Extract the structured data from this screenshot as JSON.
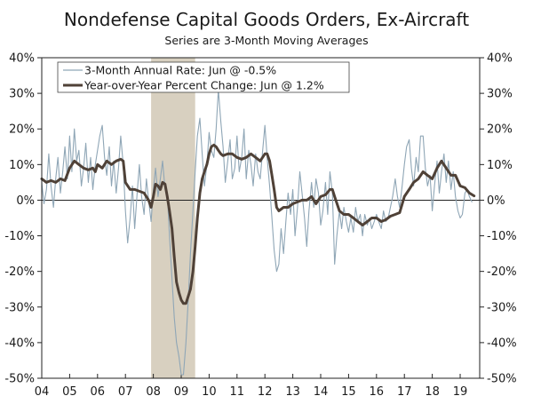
{
  "chart_data": {
    "type": "line",
    "title": "Nondefense Capital Goods Orders, Ex-Aircraft",
    "subtitle": "Series are 3-Month Moving Averages",
    "y_unit": "%",
    "ylim": [
      -50,
      40
    ],
    "y_ticks": [
      40,
      30,
      20,
      10,
      0,
      -10,
      -20,
      -30,
      -40,
      -50
    ],
    "y_tick_labels": [
      "40%",
      "30%",
      "20%",
      "10%",
      "0%",
      "-10%",
      "-20%",
      "-30%",
      "-40%",
      "-50%"
    ],
    "xlim": [
      2004,
      2019.7
    ],
    "x_ticks": [
      2004,
      2005,
      2006,
      2007,
      2008,
      2009,
      2010,
      2011,
      2012,
      2013,
      2014,
      2015,
      2016,
      2017,
      2018,
      2019
    ],
    "x_tick_labels": [
      "04",
      "05",
      "06",
      "07",
      "08",
      "09",
      "10",
      "11",
      "12",
      "13",
      "14",
      "15",
      "16",
      "17",
      "18",
      "19"
    ],
    "recession": {
      "start": 2007.92,
      "end": 2009.5
    },
    "legend_position": "top-left",
    "series": [
      {
        "name": "3-Month Annual Rate: Jun @ -0.5%",
        "color": "#8fa6b6",
        "style": "thin",
        "points": [
          [
            2004.0,
            5
          ],
          [
            2004.08,
            -1
          ],
          [
            2004.17,
            3
          ],
          [
            2004.25,
            13
          ],
          [
            2004.33,
            4
          ],
          [
            2004.42,
            -2
          ],
          [
            2004.5,
            6
          ],
          [
            2004.58,
            12
          ],
          [
            2004.67,
            2
          ],
          [
            2004.75,
            8
          ],
          [
            2004.83,
            15
          ],
          [
            2004.92,
            6
          ],
          [
            2005.0,
            18
          ],
          [
            2005.08,
            8
          ],
          [
            2005.17,
            20
          ],
          [
            2005.25,
            11
          ],
          [
            2005.33,
            14
          ],
          [
            2005.42,
            4
          ],
          [
            2005.5,
            9
          ],
          [
            2005.58,
            16
          ],
          [
            2005.67,
            5
          ],
          [
            2005.75,
            12
          ],
          [
            2005.83,
            3
          ],
          [
            2005.92,
            10
          ],
          [
            2006.0,
            14
          ],
          [
            2006.08,
            18
          ],
          [
            2006.17,
            21
          ],
          [
            2006.25,
            12
          ],
          [
            2006.33,
            7
          ],
          [
            2006.42,
            15
          ],
          [
            2006.5,
            4
          ],
          [
            2006.58,
            11
          ],
          [
            2006.67,
            2
          ],
          [
            2006.75,
            9
          ],
          [
            2006.83,
            18
          ],
          [
            2006.92,
            10
          ],
          [
            2007.0,
            -3
          ],
          [
            2007.08,
            -12
          ],
          [
            2007.17,
            -5
          ],
          [
            2007.25,
            4
          ],
          [
            2007.33,
            -8
          ],
          [
            2007.42,
            2
          ],
          [
            2007.5,
            10
          ],
          [
            2007.58,
            1
          ],
          [
            2007.67,
            -4
          ],
          [
            2007.75,
            6
          ],
          [
            2007.83,
            0
          ],
          [
            2007.92,
            -6
          ],
          [
            2008.0,
            3
          ],
          [
            2008.08,
            9
          ],
          [
            2008.17,
            1
          ],
          [
            2008.25,
            6
          ],
          [
            2008.33,
            11
          ],
          [
            2008.42,
            3
          ],
          [
            2008.5,
            2
          ],
          [
            2008.58,
            -10
          ],
          [
            2008.67,
            -22
          ],
          [
            2008.75,
            -33
          ],
          [
            2008.83,
            -40
          ],
          [
            2008.92,
            -44
          ],
          [
            2009.0,
            -49
          ],
          [
            2009.08,
            -49
          ],
          [
            2009.17,
            -40
          ],
          [
            2009.25,
            -28
          ],
          [
            2009.33,
            -15
          ],
          [
            2009.42,
            -3
          ],
          [
            2009.5,
            8
          ],
          [
            2009.58,
            18
          ],
          [
            2009.67,
            23
          ],
          [
            2009.75,
            13
          ],
          [
            2009.83,
            4
          ],
          [
            2009.92,
            10
          ],
          [
            2010.0,
            19
          ],
          [
            2010.08,
            14
          ],
          [
            2010.17,
            12
          ],
          [
            2010.25,
            20
          ],
          [
            2010.33,
            31
          ],
          [
            2010.42,
            22
          ],
          [
            2010.5,
            15
          ],
          [
            2010.58,
            5
          ],
          [
            2010.67,
            11
          ],
          [
            2010.75,
            17
          ],
          [
            2010.83,
            6
          ],
          [
            2010.92,
            9
          ],
          [
            2011.0,
            18
          ],
          [
            2011.08,
            8
          ],
          [
            2011.17,
            12
          ],
          [
            2011.25,
            20
          ],
          [
            2011.33,
            6
          ],
          [
            2011.42,
            14
          ],
          [
            2011.5,
            10
          ],
          [
            2011.58,
            4
          ],
          [
            2011.67,
            13
          ],
          [
            2011.75,
            8
          ],
          [
            2011.83,
            6
          ],
          [
            2011.92,
            14
          ],
          [
            2012.0,
            21
          ],
          [
            2012.08,
            12
          ],
          [
            2012.17,
            4
          ],
          [
            2012.25,
            -5
          ],
          [
            2012.33,
            -14
          ],
          [
            2012.42,
            -20
          ],
          [
            2012.5,
            -18
          ],
          [
            2012.58,
            -8
          ],
          [
            2012.67,
            -15
          ],
          [
            2012.75,
            -6
          ],
          [
            2012.83,
            2
          ],
          [
            2012.92,
            -4
          ],
          [
            2013.0,
            3
          ],
          [
            2013.08,
            -10
          ],
          [
            2013.17,
            -2
          ],
          [
            2013.25,
            8
          ],
          [
            2013.33,
            2
          ],
          [
            2013.42,
            -5
          ],
          [
            2013.5,
            -13
          ],
          [
            2013.58,
            -3
          ],
          [
            2013.67,
            5
          ],
          [
            2013.75,
            -2
          ],
          [
            2013.83,
            6
          ],
          [
            2013.92,
            2
          ],
          [
            2014.0,
            -7
          ],
          [
            2014.08,
            -3
          ],
          [
            2014.17,
            5
          ],
          [
            2014.25,
            -4
          ],
          [
            2014.33,
            8
          ],
          [
            2014.42,
            2
          ],
          [
            2014.5,
            -18
          ],
          [
            2014.58,
            -10
          ],
          [
            2014.67,
            -3
          ],
          [
            2014.75,
            -8
          ],
          [
            2014.83,
            -2
          ],
          [
            2014.92,
            -6
          ],
          [
            2015.0,
            -9
          ],
          [
            2015.08,
            -5
          ],
          [
            2015.17,
            -9
          ],
          [
            2015.25,
            -2
          ],
          [
            2015.33,
            -6
          ],
          [
            2015.42,
            -4
          ],
          [
            2015.5,
            -10
          ],
          [
            2015.58,
            -4
          ],
          [
            2015.67,
            -7
          ],
          [
            2015.75,
            -5
          ],
          [
            2015.83,
            -8
          ],
          [
            2015.92,
            -6
          ],
          [
            2016.0,
            -4
          ],
          [
            2016.08,
            -6
          ],
          [
            2016.17,
            -8
          ],
          [
            2016.25,
            -3
          ],
          [
            2016.33,
            -6
          ],
          [
            2016.42,
            -5
          ],
          [
            2016.5,
            -2
          ],
          [
            2016.58,
            1
          ],
          [
            2016.67,
            6
          ],
          [
            2016.75,
            1
          ],
          [
            2016.83,
            -2
          ],
          [
            2016.92,
            4
          ],
          [
            2017.0,
            10
          ],
          [
            2017.08,
            15
          ],
          [
            2017.17,
            17
          ],
          [
            2017.25,
            9
          ],
          [
            2017.33,
            4
          ],
          [
            2017.42,
            12
          ],
          [
            2017.5,
            8
          ],
          [
            2017.58,
            18
          ],
          [
            2017.67,
            18
          ],
          [
            2017.75,
            9
          ],
          [
            2017.83,
            4
          ],
          [
            2017.92,
            7
          ],
          [
            2018.0,
            -3
          ],
          [
            2018.08,
            4
          ],
          [
            2018.17,
            11
          ],
          [
            2018.25,
            2
          ],
          [
            2018.33,
            8
          ],
          [
            2018.42,
            13
          ],
          [
            2018.5,
            5
          ],
          [
            2018.58,
            11
          ],
          [
            2018.67,
            3
          ],
          [
            2018.75,
            8
          ],
          [
            2018.83,
            1
          ],
          [
            2018.92,
            -3
          ],
          [
            2019.0,
            -5
          ],
          [
            2019.08,
            -4
          ],
          [
            2019.17,
            2
          ],
          [
            2019.25,
            3
          ],
          [
            2019.33,
            1
          ],
          [
            2019.42,
            -0.5
          ]
        ]
      },
      {
        "name": "Year-over-Year Percent Change: Jun @ 1.2%",
        "color": "#4f4137",
        "style": "thick",
        "points": [
          [
            2004.0,
            6
          ],
          [
            2004.17,
            5
          ],
          [
            2004.33,
            5.5
          ],
          [
            2004.5,
            5
          ],
          [
            2004.67,
            6
          ],
          [
            2004.83,
            5.5
          ],
          [
            2005.0,
            9
          ],
          [
            2005.17,
            11
          ],
          [
            2005.33,
            10
          ],
          [
            2005.5,
            9
          ],
          [
            2005.67,
            8.5
          ],
          [
            2005.83,
            9
          ],
          [
            2005.92,
            8
          ],
          [
            2006.0,
            10
          ],
          [
            2006.17,
            9
          ],
          [
            2006.33,
            11
          ],
          [
            2006.5,
            10
          ],
          [
            2006.67,
            11
          ],
          [
            2006.83,
            11.5
          ],
          [
            2006.92,
            11
          ],
          [
            2007.0,
            5
          ],
          [
            2007.17,
            3
          ],
          [
            2007.33,
            3
          ],
          [
            2007.5,
            2.5
          ],
          [
            2007.67,
            2
          ],
          [
            2007.83,
            0
          ],
          [
            2007.92,
            -2
          ],
          [
            2008.0,
            1
          ],
          [
            2008.08,
            4.5
          ],
          [
            2008.17,
            4
          ],
          [
            2008.25,
            3
          ],
          [
            2008.33,
            5
          ],
          [
            2008.42,
            4.5
          ],
          [
            2008.5,
            1
          ],
          [
            2008.58,
            -3
          ],
          [
            2008.67,
            -8
          ],
          [
            2008.75,
            -16
          ],
          [
            2008.83,
            -23
          ],
          [
            2008.92,
            -26
          ],
          [
            2009.0,
            -28
          ],
          [
            2009.08,
            -29
          ],
          [
            2009.17,
            -29
          ],
          [
            2009.25,
            -27
          ],
          [
            2009.33,
            -25
          ],
          [
            2009.42,
            -20
          ],
          [
            2009.5,
            -13
          ],
          [
            2009.58,
            -5
          ],
          [
            2009.67,
            2
          ],
          [
            2009.75,
            6
          ],
          [
            2009.83,
            8
          ],
          [
            2009.92,
            10
          ],
          [
            2010.0,
            13
          ],
          [
            2010.08,
            15
          ],
          [
            2010.17,
            15.5
          ],
          [
            2010.25,
            15
          ],
          [
            2010.33,
            14
          ],
          [
            2010.42,
            13
          ],
          [
            2010.5,
            12.5
          ],
          [
            2010.67,
            13
          ],
          [
            2010.83,
            13
          ],
          [
            2011.0,
            12
          ],
          [
            2011.17,
            11.5
          ],
          [
            2011.33,
            12
          ],
          [
            2011.5,
            13
          ],
          [
            2011.67,
            12
          ],
          [
            2011.83,
            11
          ],
          [
            2012.0,
            13
          ],
          [
            2012.08,
            13
          ],
          [
            2012.17,
            11
          ],
          [
            2012.25,
            7
          ],
          [
            2012.33,
            3
          ],
          [
            2012.42,
            -2
          ],
          [
            2012.5,
            -3
          ],
          [
            2012.67,
            -2
          ],
          [
            2012.83,
            -2
          ],
          [
            2013.0,
            -1
          ],
          [
            2013.17,
            -0.5
          ],
          [
            2013.33,
            0
          ],
          [
            2013.5,
            0
          ],
          [
            2013.67,
            1
          ],
          [
            2013.83,
            -1
          ],
          [
            2014.0,
            1
          ],
          [
            2014.17,
            1.5
          ],
          [
            2014.33,
            3
          ],
          [
            2014.42,
            3
          ],
          [
            2014.5,
            1
          ],
          [
            2014.67,
            -3
          ],
          [
            2014.83,
            -4
          ],
          [
            2015.0,
            -4
          ],
          [
            2015.17,
            -5
          ],
          [
            2015.33,
            -6
          ],
          [
            2015.5,
            -7
          ],
          [
            2015.67,
            -6
          ],
          [
            2015.83,
            -5
          ],
          [
            2016.0,
            -5
          ],
          [
            2016.17,
            -6
          ],
          [
            2016.33,
            -5.5
          ],
          [
            2016.5,
            -4.5
          ],
          [
            2016.67,
            -4
          ],
          [
            2016.83,
            -3.5
          ],
          [
            2017.0,
            1
          ],
          [
            2017.17,
            3
          ],
          [
            2017.33,
            5
          ],
          [
            2017.5,
            6
          ],
          [
            2017.67,
            8
          ],
          [
            2017.83,
            7
          ],
          [
            2018.0,
            6
          ],
          [
            2018.17,
            9
          ],
          [
            2018.33,
            11
          ],
          [
            2018.5,
            9
          ],
          [
            2018.67,
            7
          ],
          [
            2018.83,
            7
          ],
          [
            2019.0,
            4
          ],
          [
            2019.17,
            3.5
          ],
          [
            2019.33,
            2
          ],
          [
            2019.5,
            1.2
          ]
        ]
      }
    ]
  }
}
